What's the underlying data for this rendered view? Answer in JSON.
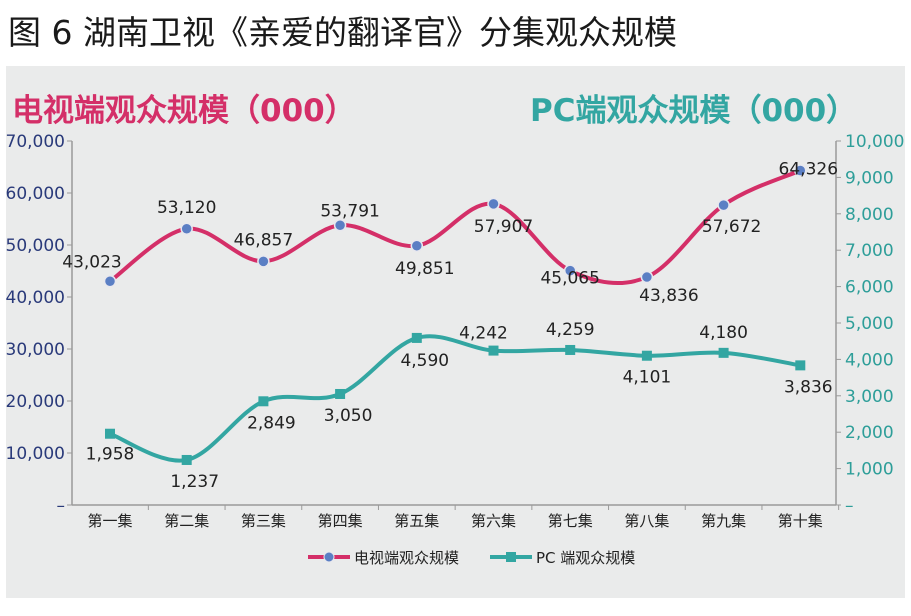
{
  "figure_title": "图 6 湖南卫视《亲爱的翻译官》分集观众规模",
  "left_header": "电视端观众规模（000）",
  "right_header": "PC端观众规模（000）",
  "colors": {
    "tv": "#d42f68",
    "pc": "#33a6a2",
    "marker_tv": "#5b7fc4",
    "axis_left": "#2a3a7a",
    "axis_right": "#2e9e99"
  },
  "chart_data": {
    "type": "line",
    "categories": [
      "第一集",
      "第二集",
      "第三集",
      "第四集",
      "第五集",
      "第六集",
      "第七集",
      "第八集",
      "第九集",
      "第十集"
    ],
    "y_left": {
      "ticks": [
        "–",
        "10,000",
        "20,000",
        "30,000",
        "40,000",
        "50,000",
        "60,000",
        "70,000"
      ],
      "range": [
        0,
        70000
      ]
    },
    "y_right": {
      "ticks": [
        "–",
        "1,000",
        "2,000",
        "3,000",
        "4,000",
        "5,000",
        "6,000",
        "7,000",
        "8,000",
        "9,000",
        "10,000"
      ],
      "range": [
        0,
        10000
      ]
    },
    "series": [
      {
        "name": "电视端观众规模",
        "axis": "left",
        "values": [
          43023,
          53120,
          46857,
          53791,
          49851,
          57907,
          45065,
          43836,
          57672,
          64326
        ],
        "labels": [
          "43,023",
          "53,120",
          "46,857",
          "53,791",
          "49,851",
          "57,907",
          "45,065",
          "43,836",
          "57,672",
          "64,326"
        ]
      },
      {
        "name": "PC 端观众规模",
        "axis": "right",
        "values": [
          1958,
          1237,
          2849,
          3050,
          4590,
          4242,
          4259,
          4101,
          4180,
          3836
        ],
        "labels": [
          "1,958",
          "1,237",
          "2,849",
          "3,050",
          "4,590",
          "4,242",
          "4,259",
          "4,101",
          "4,180",
          "3,836"
        ]
      }
    ],
    "legend_position": "bottom",
    "grid": false
  }
}
